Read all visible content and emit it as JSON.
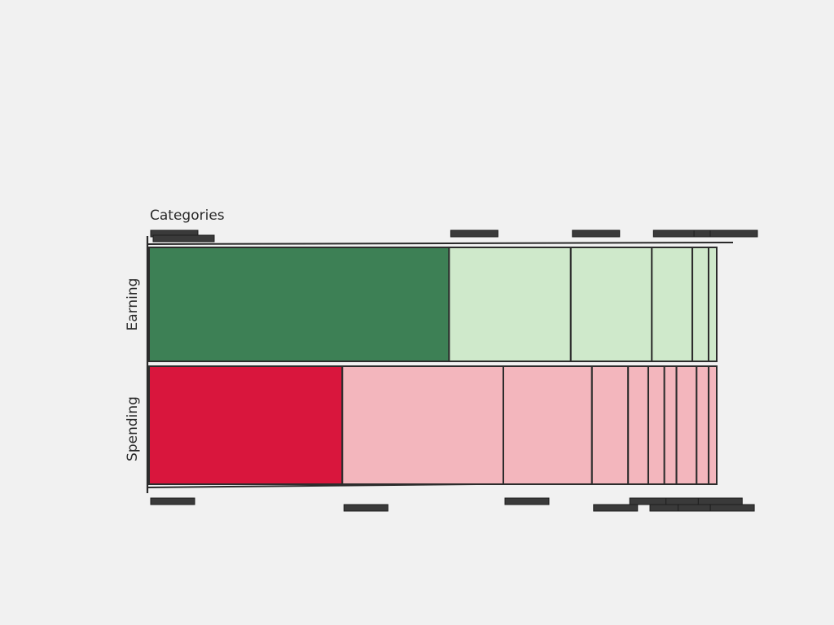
{
  "chart_data": {
    "type": "bar",
    "subtype": "stacked-100-percent-horizontal",
    "title": "Categories",
    "series": [
      {
        "name": "Earning",
        "values": [
          37,
          15,
          10,
          5,
          2,
          1
        ],
        "colors": [
          "#3d8055",
          "#cfe9cb",
          "#cfe9cb",
          "#cfe9cb",
          "#cfe9cb",
          "#cfe9cb"
        ]
      },
      {
        "name": "Spending",
        "values": [
          24,
          20,
          11,
          4.5,
          2.5,
          2,
          1.5,
          2.5,
          1.5,
          1
        ],
        "colors": [
          "#d9163d",
          "#f3b6bd",
          "#f3b6bd",
          "#f3b6bd",
          "#f3b6bd",
          "#f3b6bd",
          "#f3b6bd",
          "#f3b6bd",
          "#f3b6bd",
          "#f3b6bd"
        ]
      }
    ],
    "legend": "none",
    "grid": false
  }
}
